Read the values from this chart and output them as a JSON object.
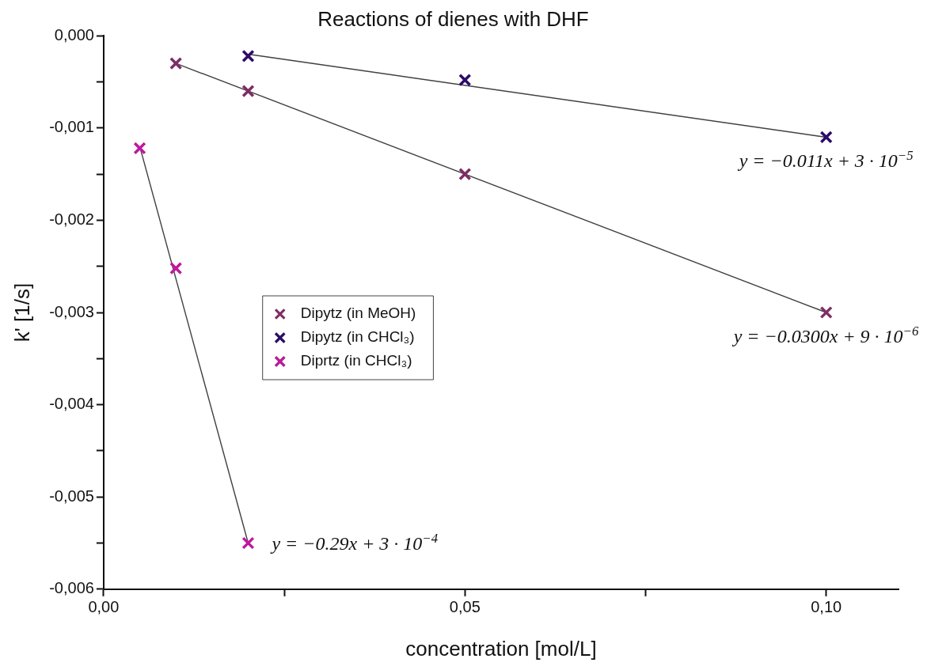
{
  "chart_data": {
    "type": "scatter",
    "title": "Reactions of dienes with DHF",
    "xlabel": "concentration [mol/L]",
    "ylabel": "k' [1/s]",
    "xlim": [
      0,
      0.11
    ],
    "xticks": [
      {
        "value": 0,
        "label": "0,00"
      },
      {
        "value": 0.025,
        "label": null
      },
      {
        "value": 0.05,
        "label": "0,05"
      },
      {
        "value": 0.075,
        "label": null
      },
      {
        "value": 0.1,
        "label": "0,10"
      }
    ],
    "ylim": [
      -0.006,
      0
    ],
    "yticks": [
      {
        "value": -0.006,
        "label": "-0,006"
      },
      {
        "value": -0.0055,
        "label": null
      },
      {
        "value": -0.005,
        "label": "-0,005"
      },
      {
        "value": -0.0045,
        "label": null
      },
      {
        "value": -0.004,
        "label": "-0,004"
      },
      {
        "value": -0.0035,
        "label": null
      },
      {
        "value": -0.003,
        "label": "-0,003"
      },
      {
        "value": -0.0025,
        "label": null
      },
      {
        "value": -0.002,
        "label": "-0,002"
      },
      {
        "value": -0.0015,
        "label": null
      },
      {
        "value": -0.001,
        "label": "-0,001"
      },
      {
        "value": -0.0005,
        "label": null
      },
      {
        "value": 0,
        "label": "0,000"
      }
    ],
    "grid": false,
    "legend": "center left",
    "marker": "cross",
    "series": [
      {
        "name": "Dipytz (in MeOH)",
        "color": "#7e2d64",
        "x": [
          0.01,
          0.02,
          0.05,
          0.1
        ],
        "values": [
          -0.0003,
          -0.0006,
          -0.0015,
          -0.003
        ]
      },
      {
        "name": "Dipytz (in CHCl₃)",
        "color": "#2c0b6b",
        "x": [
          0.02,
          0.05,
          0.1
        ],
        "values": [
          -0.00022,
          -0.00048,
          -0.0011
        ]
      },
      {
        "name": "Diprtz (in CHCl₃)",
        "color": "#c0189c",
        "x": [
          0.005,
          0.01,
          0.02
        ],
        "values": [
          -0.00122,
          -0.00252,
          -0.0055
        ]
      },
      {
        "type": "line",
        "color": "#404040",
        "marker": "none",
        "x": [
          0.02,
          0.1
        ],
        "values": [
          -0.0002,
          -0.0011
        ]
      },
      {
        "type": "line",
        "color": "#404040",
        "marker": "none",
        "x": [
          0.01,
          0.1
        ],
        "values": [
          -0.0003,
          -0.003
        ]
      },
      {
        "type": "line",
        "color": "#404040",
        "marker": "none",
        "x": [
          0.005,
          0.02
        ],
        "values": [
          -0.0012,
          -0.0055
        ]
      }
    ],
    "annotations": [
      "y = −0.011x + 3 · 10$^{−5}$",
      "y = −0.0300x + 9 · 10$^{−6}$",
      "y = −0.29x + 3 · 10$^{−4}$"
    ]
  }
}
